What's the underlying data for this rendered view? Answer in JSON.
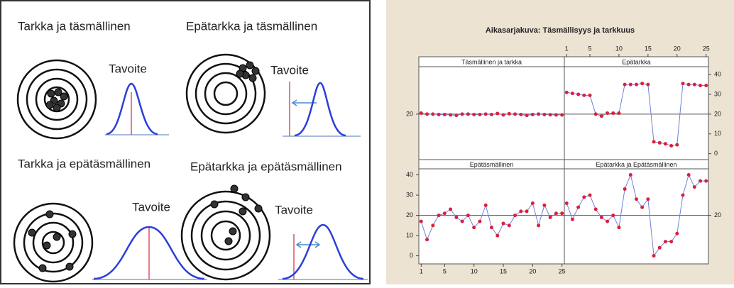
{
  "diagram": {
    "panels": [
      {
        "title": "Tarkka ja täsmällinen",
        "target_label": "Tavoite"
      },
      {
        "title": "Epätarkka ja täsmällinen",
        "target_label": "Tavoite"
      },
      {
        "title": "Tarkka ja epätäsmällinen",
        "target_label": "Tavoite"
      },
      {
        "title": "Epätarkka ja epätäsmällinen",
        "target_label": "Tavoite"
      }
    ]
  },
  "title": "Aikasarjakuva: Täsmällisyys ja tarkkuus",
  "chart_data": [
    {
      "type": "line",
      "title": "Täsmällinen ja tarkka",
      "color": "#6f80dc",
      "marker_color": "#d9203c",
      "x": [
        1,
        2,
        3,
        4,
        5,
        6,
        7,
        8,
        9,
        10,
        11,
        12,
        13,
        14,
        15,
        16,
        17,
        18,
        19,
        20,
        21,
        22,
        23,
        24,
        25
      ],
      "values": [
        20.5,
        20,
        20,
        19.8,
        19.8,
        19.6,
        19.4,
        20,
        20,
        19.8,
        19.8,
        20,
        19.8,
        20.3,
        19.6,
        20.2,
        20,
        19.8,
        19.4,
        19.8,
        20,
        19.8,
        19.7,
        19.6,
        19.6
      ],
      "xlim": [
        0.6,
        25.4
      ],
      "ylim": [
        -3,
        44
      ],
      "yticks": [
        20
      ],
      "hline": 20
    },
    {
      "type": "line",
      "title": "Epätarkka",
      "color": "#6f80dc",
      "marker_color": "#d9203c",
      "x": [
        1,
        2,
        3,
        4,
        5,
        6,
        7,
        8,
        9,
        10,
        11,
        12,
        13,
        14,
        15,
        16,
        17,
        18,
        19,
        20,
        21,
        22,
        23,
        24,
        25
      ],
      "values": [
        31,
        30.5,
        30,
        29.5,
        29.5,
        20,
        19,
        20.5,
        20.5,
        20.5,
        35,
        35,
        35,
        35.5,
        35,
        6,
        5.5,
        5,
        4,
        4.5,
        35.5,
        35,
        35,
        34.5,
        34.5
      ],
      "xlim": [
        0.6,
        25.4
      ],
      "ylim": [
        -3,
        44
      ],
      "xticks": [
        1,
        5,
        10,
        15,
        20,
        25
      ],
      "yticks": [
        0,
        10,
        20,
        30,
        40
      ],
      "hline": 20
    },
    {
      "type": "line",
      "title": "Epätäsmällinen",
      "color": "#6f80dc",
      "marker_color": "#d9203c",
      "x": [
        1,
        2,
        3,
        4,
        5,
        6,
        7,
        8,
        9,
        10,
        11,
        12,
        13,
        14,
        15,
        16,
        17,
        18,
        19,
        20,
        21,
        22,
        23,
        24,
        25
      ],
      "values": [
        17,
        8,
        15,
        20,
        21,
        23,
        19,
        17,
        20,
        14,
        17,
        25,
        14,
        10,
        16,
        15,
        20,
        22,
        22,
        26,
        15,
        25,
        19,
        21,
        21
      ],
      "xlim": [
        0.6,
        25.4
      ],
      "ylim": [
        -4,
        43
      ],
      "xticks": [
        1,
        5,
        10,
        15,
        20,
        25
      ],
      "yticks": [
        0,
        10,
        20,
        30,
        40
      ],
      "hline": 20
    },
    {
      "type": "line",
      "title": "Epätarkka ja Epätäsmällinen",
      "color": "#6f80dc",
      "marker_color": "#d9203c",
      "x": [
        1,
        2,
        3,
        4,
        5,
        6,
        7,
        8,
        9,
        10,
        11,
        12,
        13,
        14,
        15,
        16,
        17,
        18,
        19,
        20,
        21,
        22,
        23,
        24,
        25
      ],
      "values": [
        26,
        18,
        24,
        29,
        30,
        23,
        19,
        17,
        20,
        14,
        33,
        40,
        28,
        24,
        28,
        0,
        4,
        7,
        7,
        11,
        30,
        40,
        34,
        37,
        37
      ],
      "xlim": [
        0.6,
        25.4
      ],
      "ylim": [
        -4,
        43
      ],
      "yticks": [
        20
      ],
      "hline": 20
    }
  ]
}
